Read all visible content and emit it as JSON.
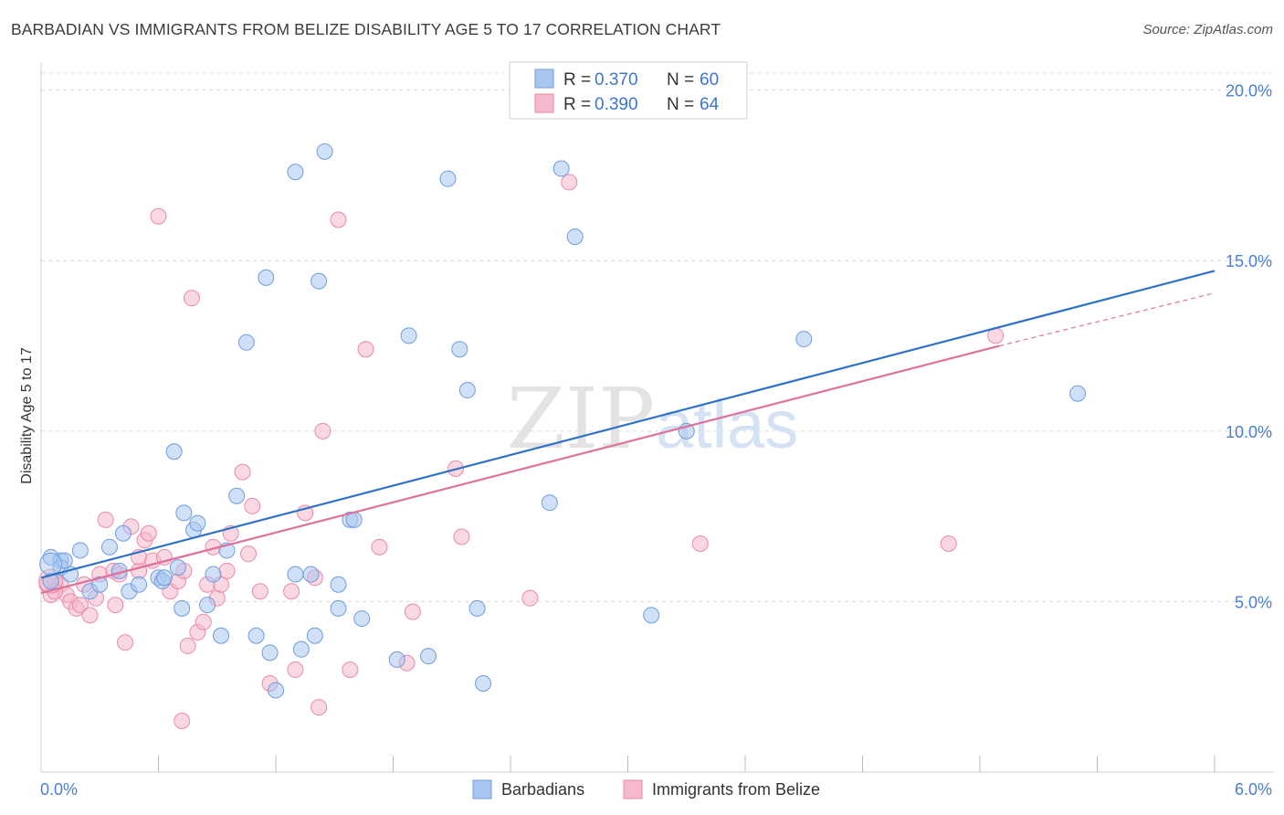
{
  "header": {
    "title": "BARBADIAN VS IMMIGRANTS FROM BELIZE DISABILITY AGE 5 TO 17 CORRELATION CHART",
    "source": "Source: ZipAtlas.com"
  },
  "watermark": {
    "part1": "ZIP",
    "part2": "atlas"
  },
  "colors": {
    "blue_fill": "#a9c6f0",
    "blue_stroke": "#6e9de0",
    "blue_line": "#2f72c8",
    "pink_fill": "#f6b8cb",
    "pink_stroke": "#e88aaa",
    "pink_line": "#e0719a",
    "grid": "#dcdcdc",
    "tick_text": "#4a7fd4"
  },
  "legend": {
    "rows": [
      {
        "r_label": "R =",
        "r_value": "0.370",
        "n_label": "N =",
        "n_value": "60"
      },
      {
        "r_label": "R =",
        "r_value": "0.390",
        "n_label": "N =",
        "n_value": "64"
      }
    ]
  },
  "bottom_legend": {
    "items": [
      "Barbadians",
      "Immigrants from Belize"
    ]
  },
  "chart_data": {
    "type": "scatter",
    "title": "BARBADIAN VS IMMIGRANTS FROM BELIZE DISABILITY AGE 5 TO 17 CORRELATION CHART",
    "xlabel": "",
    "ylabel": "Disability Age 5 to 17",
    "xlim": [
      0,
      6
    ],
    "ylim": [
      0,
      20.5
    ],
    "x_tick_labels": [
      {
        "value": 0,
        "label": "0.0%"
      },
      {
        "value": 6,
        "label": "6.0%"
      }
    ],
    "y_tick_labels": [
      {
        "value": 5,
        "label": "5.0%"
      },
      {
        "value": 10,
        "label": "10.0%"
      },
      {
        "value": 15,
        "label": "15.0%"
      },
      {
        "value": 20,
        "label": "20.0%"
      }
    ],
    "y_gridlines": [
      5,
      10,
      15,
      20
    ],
    "x_minor_ticks": [
      0.6,
      1.2,
      1.8,
      2.4,
      3.0,
      3.6,
      4.2,
      4.8,
      5.4,
      6.0
    ],
    "legend_position": "top-center",
    "series": [
      {
        "name": "Barbadians",
        "R": 0.37,
        "N": 60,
        "trend": {
          "x": [
            0,
            6
          ],
          "y": [
            5.7,
            14.7
          ]
        },
        "points": [
          [
            0.05,
            6.3
          ],
          [
            0.05,
            5.6
          ],
          [
            0.1,
            6.2
          ],
          [
            0.1,
            6.0
          ],
          [
            0.15,
            5.8
          ],
          [
            0.2,
            6.5
          ],
          [
            0.25,
            5.3
          ],
          [
            0.3,
            5.5
          ],
          [
            0.35,
            6.6
          ],
          [
            0.4,
            5.9
          ],
          [
            0.42,
            7.0
          ],
          [
            0.45,
            5.3
          ],
          [
            0.5,
            5.5
          ],
          [
            0.6,
            5.7
          ],
          [
            0.62,
            5.6
          ],
          [
            0.63,
            5.7
          ],
          [
            0.7,
            6.0
          ],
          [
            0.68,
            9.4
          ],
          [
            0.72,
            4.8
          ],
          [
            0.73,
            7.6
          ],
          [
            0.78,
            7.1
          ],
          [
            0.8,
            7.3
          ],
          [
            0.85,
            4.9
          ],
          [
            0.88,
            5.8
          ],
          [
            0.92,
            4.0
          ],
          [
            0.95,
            6.5
          ],
          [
            1.0,
            8.1
          ],
          [
            1.05,
            12.6
          ],
          [
            1.1,
            4.0
          ],
          [
            1.15,
            14.5
          ],
          [
            1.17,
            3.5
          ],
          [
            1.2,
            2.4
          ],
          [
            1.3,
            5.8
          ],
          [
            1.3,
            17.6
          ],
          [
            1.33,
            3.6
          ],
          [
            1.38,
            5.8
          ],
          [
            1.4,
            4.0
          ],
          [
            1.42,
            14.4
          ],
          [
            1.45,
            18.2
          ],
          [
            1.52,
            4.8
          ],
          [
            1.52,
            5.5
          ],
          [
            1.58,
            7.4
          ],
          [
            1.6,
            7.4
          ],
          [
            1.64,
            4.5
          ],
          [
            1.82,
            3.3
          ],
          [
            1.88,
            12.8
          ],
          [
            1.98,
            3.4
          ],
          [
            2.08,
            17.4
          ],
          [
            2.14,
            12.4
          ],
          [
            2.18,
            11.2
          ],
          [
            2.23,
            4.8
          ],
          [
            2.26,
            2.6
          ],
          [
            2.6,
            7.9
          ],
          [
            2.66,
            17.7
          ],
          [
            2.73,
            15.7
          ],
          [
            3.12,
            4.6
          ],
          [
            3.3,
            10.0
          ],
          [
            3.9,
            12.7
          ],
          [
            5.3,
            11.1
          ],
          [
            0.12,
            6.2
          ]
        ]
      },
      {
        "name": "Immigrants from Belize",
        "R": 0.39,
        "N": 64,
        "trend": {
          "x": [
            0,
            4.9
          ],
          "y": [
            5.25,
            12.5
          ]
        },
        "trend_dashed": {
          "x": [
            4.9,
            6.0
          ],
          "y": [
            12.5,
            14.05
          ]
        },
        "points": [
          [
            0.03,
            5.5
          ],
          [
            0.05,
            5.2
          ],
          [
            0.07,
            5.6
          ],
          [
            0.1,
            5.5
          ],
          [
            0.13,
            5.2
          ],
          [
            0.15,
            5.0
          ],
          [
            0.18,
            4.8
          ],
          [
            0.2,
            4.9
          ],
          [
            0.25,
            4.6
          ],
          [
            0.28,
            5.1
          ],
          [
            0.3,
            5.8
          ],
          [
            0.33,
            7.4
          ],
          [
            0.37,
            5.9
          ],
          [
            0.38,
            4.9
          ],
          [
            0.4,
            5.8
          ],
          [
            0.43,
            3.8
          ],
          [
            0.46,
            7.2
          ],
          [
            0.5,
            5.9
          ],
          [
            0.5,
            6.3
          ],
          [
            0.53,
            6.8
          ],
          [
            0.55,
            7.0
          ],
          [
            0.57,
            6.2
          ],
          [
            0.6,
            16.3
          ],
          [
            0.63,
            6.3
          ],
          [
            0.66,
            5.3
          ],
          [
            0.7,
            5.6
          ],
          [
            0.72,
            1.5
          ],
          [
            0.73,
            5.9
          ],
          [
            0.75,
            3.7
          ],
          [
            0.77,
            13.9
          ],
          [
            0.8,
            4.1
          ],
          [
            0.83,
            4.4
          ],
          [
            0.85,
            5.5
          ],
          [
            0.88,
            6.6
          ],
          [
            0.9,
            5.1
          ],
          [
            0.92,
            5.5
          ],
          [
            0.95,
            5.9
          ],
          [
            0.97,
            7.0
          ],
          [
            1.03,
            8.8
          ],
          [
            1.06,
            6.4
          ],
          [
            1.08,
            7.8
          ],
          [
            1.12,
            5.3
          ],
          [
            1.17,
            2.6
          ],
          [
            1.28,
            5.3
          ],
          [
            1.3,
            3.0
          ],
          [
            1.35,
            7.6
          ],
          [
            1.4,
            5.7
          ],
          [
            1.42,
            1.9
          ],
          [
            1.44,
            10.0
          ],
          [
            1.52,
            16.2
          ],
          [
            1.58,
            3.0
          ],
          [
            1.66,
            12.4
          ],
          [
            1.73,
            6.6
          ],
          [
            1.87,
            3.2
          ],
          [
            1.9,
            4.7
          ],
          [
            2.12,
            8.9
          ],
          [
            2.15,
            6.9
          ],
          [
            2.5,
            5.1
          ],
          [
            2.7,
            17.3
          ],
          [
            3.37,
            6.7
          ],
          [
            4.88,
            12.8
          ],
          [
            4.64,
            6.7
          ],
          [
            0.07,
            5.3
          ],
          [
            0.22,
            5.5
          ]
        ]
      }
    ]
  }
}
